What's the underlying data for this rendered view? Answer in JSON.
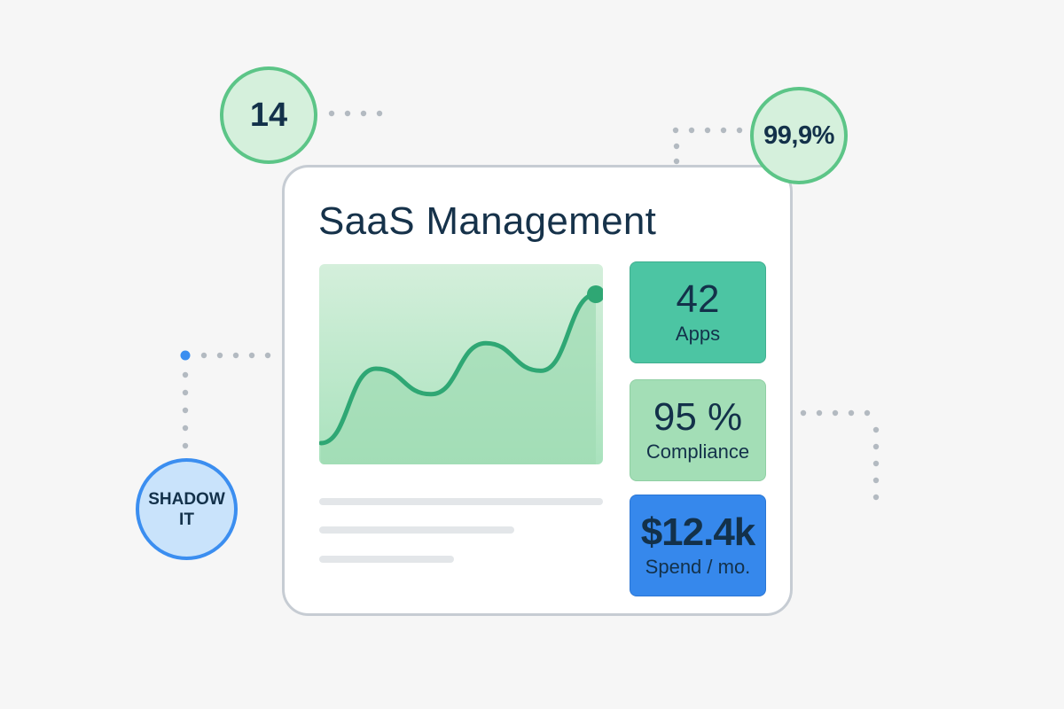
{
  "card": {
    "title": "SaaS Management"
  },
  "chart": {
    "type": "line",
    "values": [
      1,
      4.5,
      3.3,
      5.7,
      4.4,
      8
    ],
    "colors": {
      "panel_top": "#d4efdb",
      "panel_bottom": "#a9e2bd",
      "area": "#9fdcb3",
      "line": "#2fa774"
    }
  },
  "stats": [
    {
      "id": "apps",
      "value": "42",
      "label": "Apps"
    },
    {
      "id": "compliance",
      "value": "95 %",
      "label": "Compliance"
    },
    {
      "id": "spend",
      "value": "$12.4k",
      "label": "Spend / mo."
    }
  ],
  "bubbles": {
    "count": "14",
    "uptime": "99,9%",
    "shadow_it": "SHADOW IT"
  },
  "colors": {
    "accent_green": "#5cc587",
    "accent_blue": "#3b8ef0",
    "teal": "#4cc5a3",
    "text_dark": "#13314a",
    "connector_dots": "#b3bac1"
  }
}
